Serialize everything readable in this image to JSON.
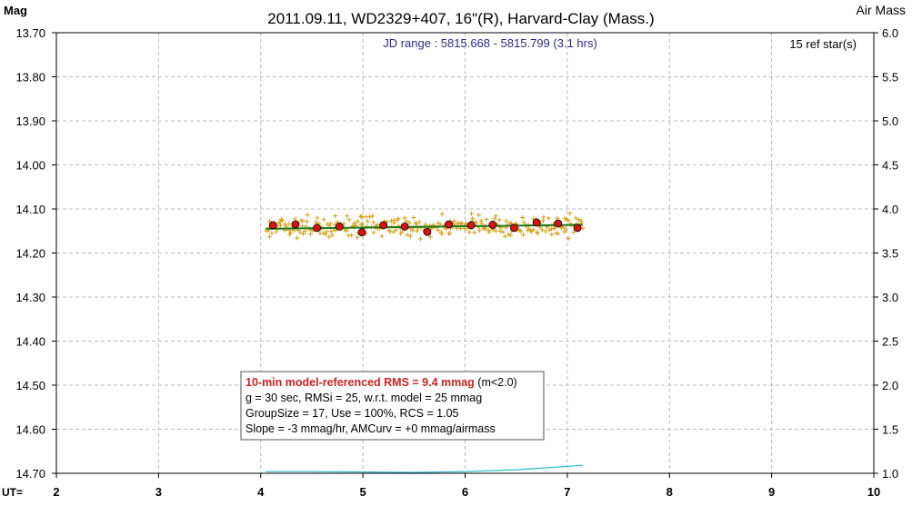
{
  "chart_data": {
    "type": "scatter",
    "title": "2011.09.11, WD2329+407, 16\"(R), Harvard-Clay (Mass.)",
    "ylabel_left": "Mag",
    "ylabel_right": "Air Mass",
    "xlabel_prefix": "UT=",
    "jd_range": "JD range : 5815.668 - 5815.799 (3.1 hrs)",
    "ref_stars": "15 ref star(s)",
    "x_ticks": [
      "2",
      "3",
      "4",
      "5",
      "6",
      "7",
      "8",
      "9",
      "10"
    ],
    "y_left_ticks": [
      "13.70",
      "13.80",
      "13.90",
      "14.00",
      "14.10",
      "14.20",
      "14.30",
      "14.40",
      "14.50",
      "14.60",
      "14.70"
    ],
    "y_right_ticks": [
      "6.0",
      "5.5",
      "5.0",
      "4.5",
      "4.0",
      "3.5",
      "3.0",
      "2.5",
      "2.0",
      "1.5",
      "1.0"
    ],
    "xlim": [
      2,
      10
    ],
    "ylim_mag": [
      13.7,
      14.7
    ],
    "ylim_airmass": [
      1.0,
      6.0
    ],
    "grid": true,
    "group_means": {
      "name": "10-min averages",
      "x": [
        4.12,
        4.34,
        4.55,
        4.77,
        4.99,
        5.2,
        5.41,
        5.63,
        5.84,
        6.06,
        6.27,
        6.48,
        6.7,
        6.91,
        7.1
      ],
      "y": [
        14.137,
        14.135,
        14.143,
        14.14,
        14.153,
        14.137,
        14.14,
        14.152,
        14.135,
        14.137,
        14.136,
        14.143,
        14.131,
        14.133,
        14.143
      ]
    },
    "model_line": {
      "x": [
        4.05,
        7.15
      ],
      "y": [
        14.145,
        14.136
      ]
    },
    "airmass_line": {
      "x": [
        4.05,
        4.5,
        5.5,
        6.0,
        6.5,
        7.15
      ],
      "y": [
        1.02,
        1.02,
        1.01,
        1.02,
        1.04,
        1.09
      ]
    },
    "scatter_range": {
      "x": [
        4.05,
        7.15
      ],
      "center": 14.14,
      "spread": 0.035,
      "count": 300
    }
  },
  "stats_box": {
    "line1_bold": "10-min model-referenced RMS = 9.4 mmag",
    "line1_rest": " (m<2.0)",
    "line2": "g = 30 sec, RMSi = 25, w.r.t. model = 25 mmag",
    "line3": "GroupSize = 17, Use = 100%, RCS = 1.05",
    "line4": "Slope = -3 mmag/hr, AMCurv = +0 mmag/airmass"
  },
  "colors": {
    "scatter": "#d4a017",
    "mean_fill": "#dd1111",
    "model": "#1a7a1a",
    "airmass": "#22bbcc",
    "jd_text": "#2a2a88",
    "rms_text": "#cc2222",
    "grid": "#bbbbbb"
  }
}
